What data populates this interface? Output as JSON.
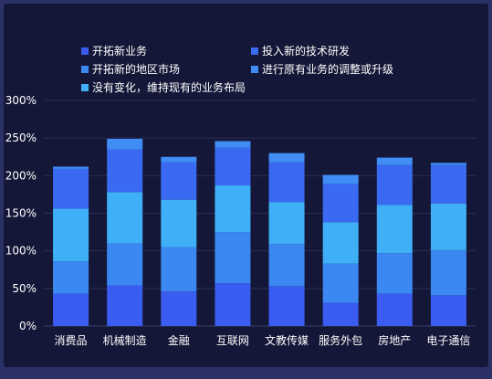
{
  "chart_data": {
    "type": "bar",
    "stacked": true,
    "grid": true,
    "legend_position": "top",
    "y_tick_labels": [
      "0%",
      "50%",
      "100%",
      "150%",
      "200%",
      "250%",
      "300%"
    ],
    "ylim": [
      0,
      300
    ],
    "categories": [
      "消费品",
      "机械制造",
      "金融",
      "互联网",
      "文教传媒",
      "服务外包",
      "房地产",
      "电子通信"
    ],
    "series": [
      {
        "name": "开拓新业务",
        "color": "#3a5cf0",
        "values": [
          43,
          54,
          46,
          57,
          53,
          31,
          43,
          41
        ]
      },
      {
        "name": "开拓新的地区市场",
        "color": "#3b88f2",
        "values": [
          43,
          56,
          59,
          68,
          56,
          52,
          54,
          60
        ]
      },
      {
        "name": "没有变化，维持现有的业务布局",
        "color": "#3fb0f7",
        "values": [
          70,
          68,
          63,
          62,
          56,
          55,
          64,
          62
        ]
      },
      {
        "name": "投入新的技术研发",
        "color": "#3a6af2",
        "values": [
          53,
          57,
          50,
          50,
          53,
          51,
          53,
          51
        ]
      },
      {
        "name": "进行原有业务的调整或升级",
        "color": "#3f8df5",
        "values": [
          3,
          14,
          7,
          9,
          12,
          12,
          10,
          3
        ]
      }
    ]
  }
}
